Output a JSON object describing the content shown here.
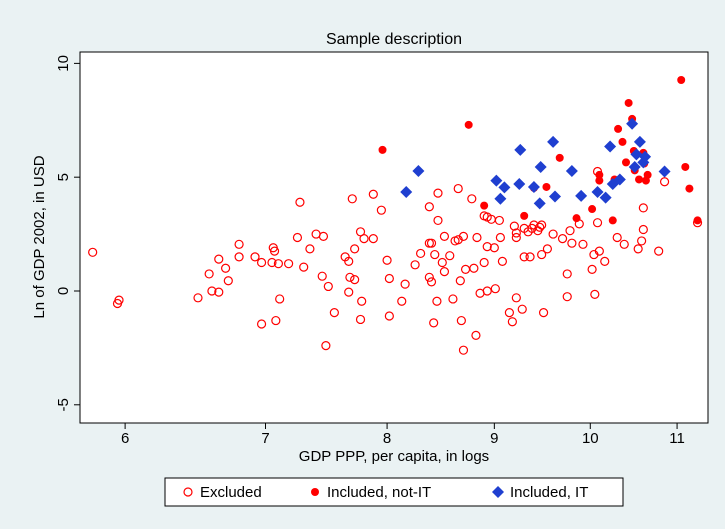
{
  "chart_data": {
    "type": "scatter",
    "title": "Sample description",
    "x_label": "GDP PPP, per capita, in logs",
    "y_label": "Ln of GDP 2002, in USD",
    "x_scale": "log",
    "xlim": [
      5.71,
      11.38
    ],
    "xticks": [
      6,
      7,
      8,
      9,
      10,
      11
    ],
    "ylim": [
      -5.8,
      10.5
    ],
    "yticks": [
      -5,
      0,
      5,
      10
    ],
    "grid": false,
    "legend": "bottom",
    "series": [
      {
        "name": "Excluded",
        "color": "#ff0000",
        "marker": "hollow-circle",
        "x": [
          5.79,
          5.95,
          5.96,
          6.5,
          6.58,
          6.6,
          6.65,
          6.65,
          6.7,
          6.72,
          6.8,
          6.8,
          6.92,
          6.97,
          6.97,
          7.05,
          7.06,
          7.07,
          7.08,
          7.1,
          7.11,
          7.18,
          7.25,
          7.27,
          7.3,
          7.35,
          7.4,
          7.45,
          7.46,
          7.48,
          7.5,
          7.55,
          7.64,
          7.67,
          7.67,
          7.68,
          7.7,
          7.72,
          7.72,
          7.77,
          7.77,
          7.78,
          7.8,
          7.88,
          7.88,
          7.95,
          8.0,
          8.02,
          8.02,
          8.13,
          8.16,
          8.25,
          8.3,
          8.38,
          8.38,
          8.38,
          8.4,
          8.4,
          8.42,
          8.43,
          8.45,
          8.46,
          8.46,
          8.5,
          8.52,
          8.52,
          8.57,
          8.6,
          8.62,
          8.65,
          8.65,
          8.67,
          8.68,
          8.7,
          8.7,
          8.72,
          8.78,
          8.8,
          8.82,
          8.83,
          8.86,
          8.9,
          8.9,
          8.93,
          8.93,
          8.93,
          8.97,
          9.0,
          9.01,
          9.05,
          9.06,
          9.08,
          9.15,
          9.18,
          9.2,
          9.22,
          9.22,
          9.22,
          9.28,
          9.3,
          9.3,
          9.34,
          9.36,
          9.38,
          9.4,
          9.44,
          9.46,
          9.48,
          9.48,
          9.5,
          9.54,
          9.6,
          9.7,
          9.75,
          9.75,
          9.78,
          9.8,
          9.88,
          9.92,
          10.02,
          10.04,
          10.05,
          10.08,
          10.1,
          10.16,
          10.3,
          10.38,
          10.54,
          10.6,
          10.58,
          10.6,
          10.78,
          10.85,
          11.25,
          10.08
        ],
        "values": [
          1.7,
          -0.55,
          -0.4,
          -0.3,
          0.75,
          0,
          -0.05,
          1.4,
          1.0,
          0.45,
          2.05,
          1.5,
          1.5,
          -1.45,
          1.25,
          1.25,
          1.9,
          1.75,
          -1.3,
          1.2,
          -0.35,
          1.2,
          2.35,
          3.9,
          1.05,
          1.85,
          2.5,
          0.65,
          2.4,
          -2.4,
          0.2,
          -0.95,
          1.5,
          -0.05,
          1.3,
          0.6,
          4.05,
          0.5,
          1.85,
          2.6,
          -1.25,
          -0.45,
          2.3,
          2.3,
          4.25,
          3.55,
          1.35,
          0.55,
          -1.1,
          -0.45,
          0.3,
          1.15,
          1.65,
          3.7,
          2.1,
          0.6,
          2.1,
          0.4,
          -1.4,
          1.6,
          -0.45,
          4.3,
          3.1,
          1.25,
          2.4,
          0.85,
          1.55,
          -0.35,
          2.2,
          4.5,
          2.25,
          0.45,
          -1.3,
          -2.6,
          2.4,
          0.95,
          4.05,
          1.0,
          -1.95,
          2.35,
          -0.1,
          3.3,
          1.25,
          3.25,
          1.95,
          0,
          3.15,
          1.9,
          0.1,
          3.1,
          2.35,
          1.3,
          -0.95,
          -1.35,
          2.85,
          2.55,
          2.35,
          -0.3,
          -0.8,
          2.75,
          1.5,
          2.6,
          1.5,
          2.75,
          2.9,
          2.65,
          2.8,
          1.6,
          2.9,
          -0.95,
          1.85,
          2.5,
          2.3,
          0.75,
          -0.25,
          2.65,
          2.1,
          2.95,
          2.05,
          0.95,
          1.6,
          -0.15,
          3.0,
          1.75,
          1.3,
          2.35,
          2.05,
          1.85,
          2.7,
          2.2,
          3.65,
          1.75,
          4.8,
          3.0,
          5.25
        ]
      },
      {
        "name": "Included, not-IT",
        "color": "#ff0000",
        "marker": "circle",
        "x": [
          11.05,
          10.43,
          10.47,
          10.31,
          10.36,
          10.49,
          10.6,
          7.96,
          8.75,
          9.67,
          8.9,
          9.3,
          9.4,
          9.53,
          9.85,
          10.02,
          10.25,
          10.1,
          10.27,
          10.4,
          10.5,
          10.55,
          10.63,
          10.65,
          11.15,
          11.1,
          11.25,
          10.61,
          10.1
        ],
        "values": [
          9.27,
          8.26,
          7.56,
          7.12,
          6.55,
          6.15,
          6.07,
          6.2,
          7.3,
          5.85,
          3.75,
          3.3,
          4.53,
          4.57,
          3.2,
          3.6,
          3.1,
          4.85,
          4.9,
          5.65,
          5.3,
          4.9,
          4.85,
          5.1,
          4.5,
          5.45,
          3.1,
          5.6,
          5.1
        ]
      },
      {
        "name": "Included, IT",
        "color": "#1f3fd0",
        "marker": "diamond",
        "x": [
          8.28,
          8.17,
          9.02,
          9.06,
          9.1,
          9.25,
          9.26,
          9.4,
          9.47,
          9.46,
          9.6,
          9.62,
          9.8,
          9.9,
          10.08,
          10.17,
          10.25,
          10.22,
          10.47,
          10.52,
          10.56,
          10.6,
          10.5,
          10.85,
          10.33,
          10.62
        ],
        "values": [
          5.27,
          4.35,
          4.85,
          4.05,
          4.55,
          4.7,
          6.2,
          4.57,
          5.45,
          3.85,
          6.55,
          4.15,
          5.27,
          4.18,
          4.35,
          4.1,
          4.7,
          6.35,
          7.35,
          6.0,
          6.55,
          5.65,
          5.45,
          5.25,
          4.9,
          5.9
        ]
      }
    ]
  }
}
